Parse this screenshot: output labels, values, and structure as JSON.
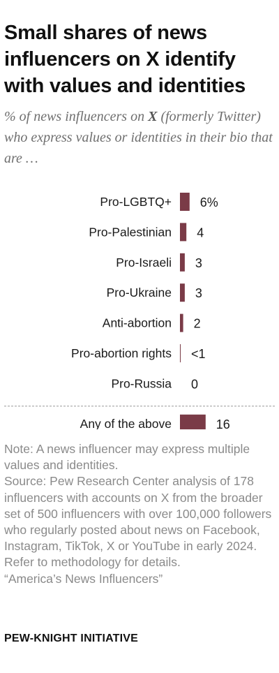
{
  "header": {
    "title": "Small shares of news influencers on X identify with values and identities",
    "subtitle_pre": "% of news influencers on ",
    "subtitle_x": "X",
    "subtitle_post": " (formerly Twitter) who express values or identities in their bio that are …"
  },
  "chart_data": {
    "type": "bar",
    "orientation": "horizontal",
    "categories": [
      "Pro-LGBTQ+",
      "Pro-Palestinian",
      "Pro-Israeli",
      "Pro-Ukraine",
      "Anti-abortion",
      "Pro-abortion rights",
      "Pro-Russia",
      "Any of the above"
    ],
    "values": [
      6,
      4,
      3,
      3,
      2,
      0.4,
      0,
      16
    ],
    "value_labels": [
      "6%",
      "4",
      "3",
      "3",
      "2",
      "<1",
      "0",
      "16"
    ],
    "bar_color": "#7a3b47",
    "divider_before": "Any of the above",
    "grid": false,
    "title": "",
    "xlabel": "",
    "ylabel": ""
  },
  "notes": {
    "note": "Note: A news influencer may express multiple values and identities.",
    "source": "Source: Pew Research Center analysis of 178 influencers with accounts on X from the broader set of 500 influencers with over 100,000 followers who regularly posted about news on Facebook, Instagram, TikTok, X or YouTube in early 2024. Refer to methodology for details.",
    "report": "“America’s News Influencers”"
  },
  "footer": {
    "org": "PEW-KNIGHT INITIATIVE"
  }
}
